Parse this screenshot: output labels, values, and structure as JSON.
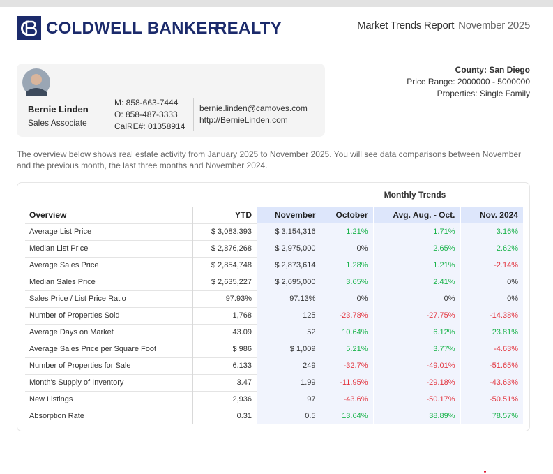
{
  "header": {
    "brand": "COLDWELL BANKER",
    "brand_suffix": "REALTY",
    "report_title": "Market Trends Report",
    "report_date": "November 2025"
  },
  "agent": {
    "name": "Bernie Linden",
    "role": "Sales Associate",
    "mobile": "M: 858-663-7444",
    "office": "O: 858-487-3333",
    "license": "CalRE#: 01358914",
    "email": "bernie.linden@camoves.com",
    "website": "http://BernieLinden.com"
  },
  "filters": {
    "county": "County: San Diego",
    "price_range": "Price Range: 2000000 - 5000000",
    "properties": "Properties: Single Family"
  },
  "intro": "The overview below shows real estate activity from January 2025 to November 2025. You will see data comparisons between November and the previous month, the last three months and November 2024.",
  "table": {
    "group_header": "Monthly Trends",
    "columns": [
      "Overview",
      "YTD",
      "November",
      "October",
      "Avg. Aug. - Oct.",
      "Nov. 2024"
    ],
    "rows": [
      [
        "Average List Price",
        "$ 3,083,393",
        "$ 3,154,316",
        "1.21%",
        "1.71%",
        "3.16%"
      ],
      [
        "Median List Price",
        "$ 2,876,268",
        "$ 2,975,000",
        "0%",
        "2.65%",
        "2.62%"
      ],
      [
        "Average Sales Price",
        "$ 2,854,748",
        "$ 2,873,614",
        "1.28%",
        "1.21%",
        "-2.14%"
      ],
      [
        "Median Sales Price",
        "$ 2,635,227",
        "$ 2,695,000",
        "3.65%",
        "2.41%",
        "0%"
      ],
      [
        "Sales Price / List Price Ratio",
        "97.93%",
        "97.13%",
        "0%",
        "0%",
        "0%"
      ],
      [
        "Number of Properties Sold",
        "1,768",
        "125",
        "-23.78%",
        "-27.75%",
        "-14.38%"
      ],
      [
        "Average Days on Market",
        "43.09",
        "52",
        "10.64%",
        "6.12%",
        "23.81%"
      ],
      [
        "Average Sales Price per Square Foot",
        "$ 986",
        "$ 1,009",
        "5.21%",
        "3.77%",
        "-4.63%"
      ],
      [
        "Number of Properties for Sale",
        "6,133",
        "249",
        "-32.7%",
        "-49.01%",
        "-51.65%"
      ],
      [
        "Month's Supply of Inventory",
        "3.47",
        "1.99",
        "-11.95%",
        "-29.18%",
        "-43.63%"
      ],
      [
        "New Listings",
        "2,936",
        "97",
        "-43.6%",
        "-50.17%",
        "-50.51%"
      ],
      [
        "Absorption Rate",
        "0.31",
        "0.5",
        "13.64%",
        "38.89%",
        "78.57%"
      ]
    ]
  }
}
